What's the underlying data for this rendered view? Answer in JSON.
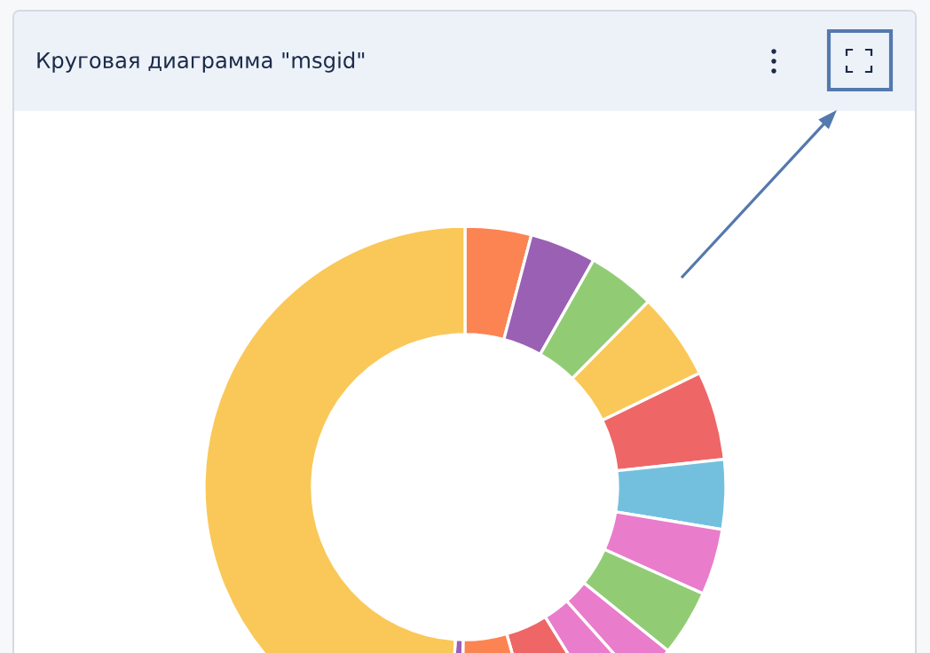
{
  "chart_data": {
    "type": "donut",
    "title": "Круговая диаграмма \"msgid\"",
    "categories": [
      null,
      null,
      null,
      null,
      null,
      null,
      null,
      null,
      null,
      null,
      null,
      null,
      null,
      null
    ],
    "values": [
      4.1,
      4.1,
      4.2,
      5.4,
      5.5,
      4.3,
      4.1,
      4.1,
      2.6,
      2.8,
      4.4,
      4.6,
      0.8,
      49.0
    ],
    "colors": [
      "#fc8452",
      "#9a60b4",
      "#91cc75",
      "#fac858",
      "#ee6666",
      "#73c0de",
      "#ea7ccc",
      "#91cc75",
      "#ea7ccc",
      "#ea7ccc",
      "#ee6666",
      "#fc8452",
      "#9a60b4",
      "#fac858"
    ]
  }
}
